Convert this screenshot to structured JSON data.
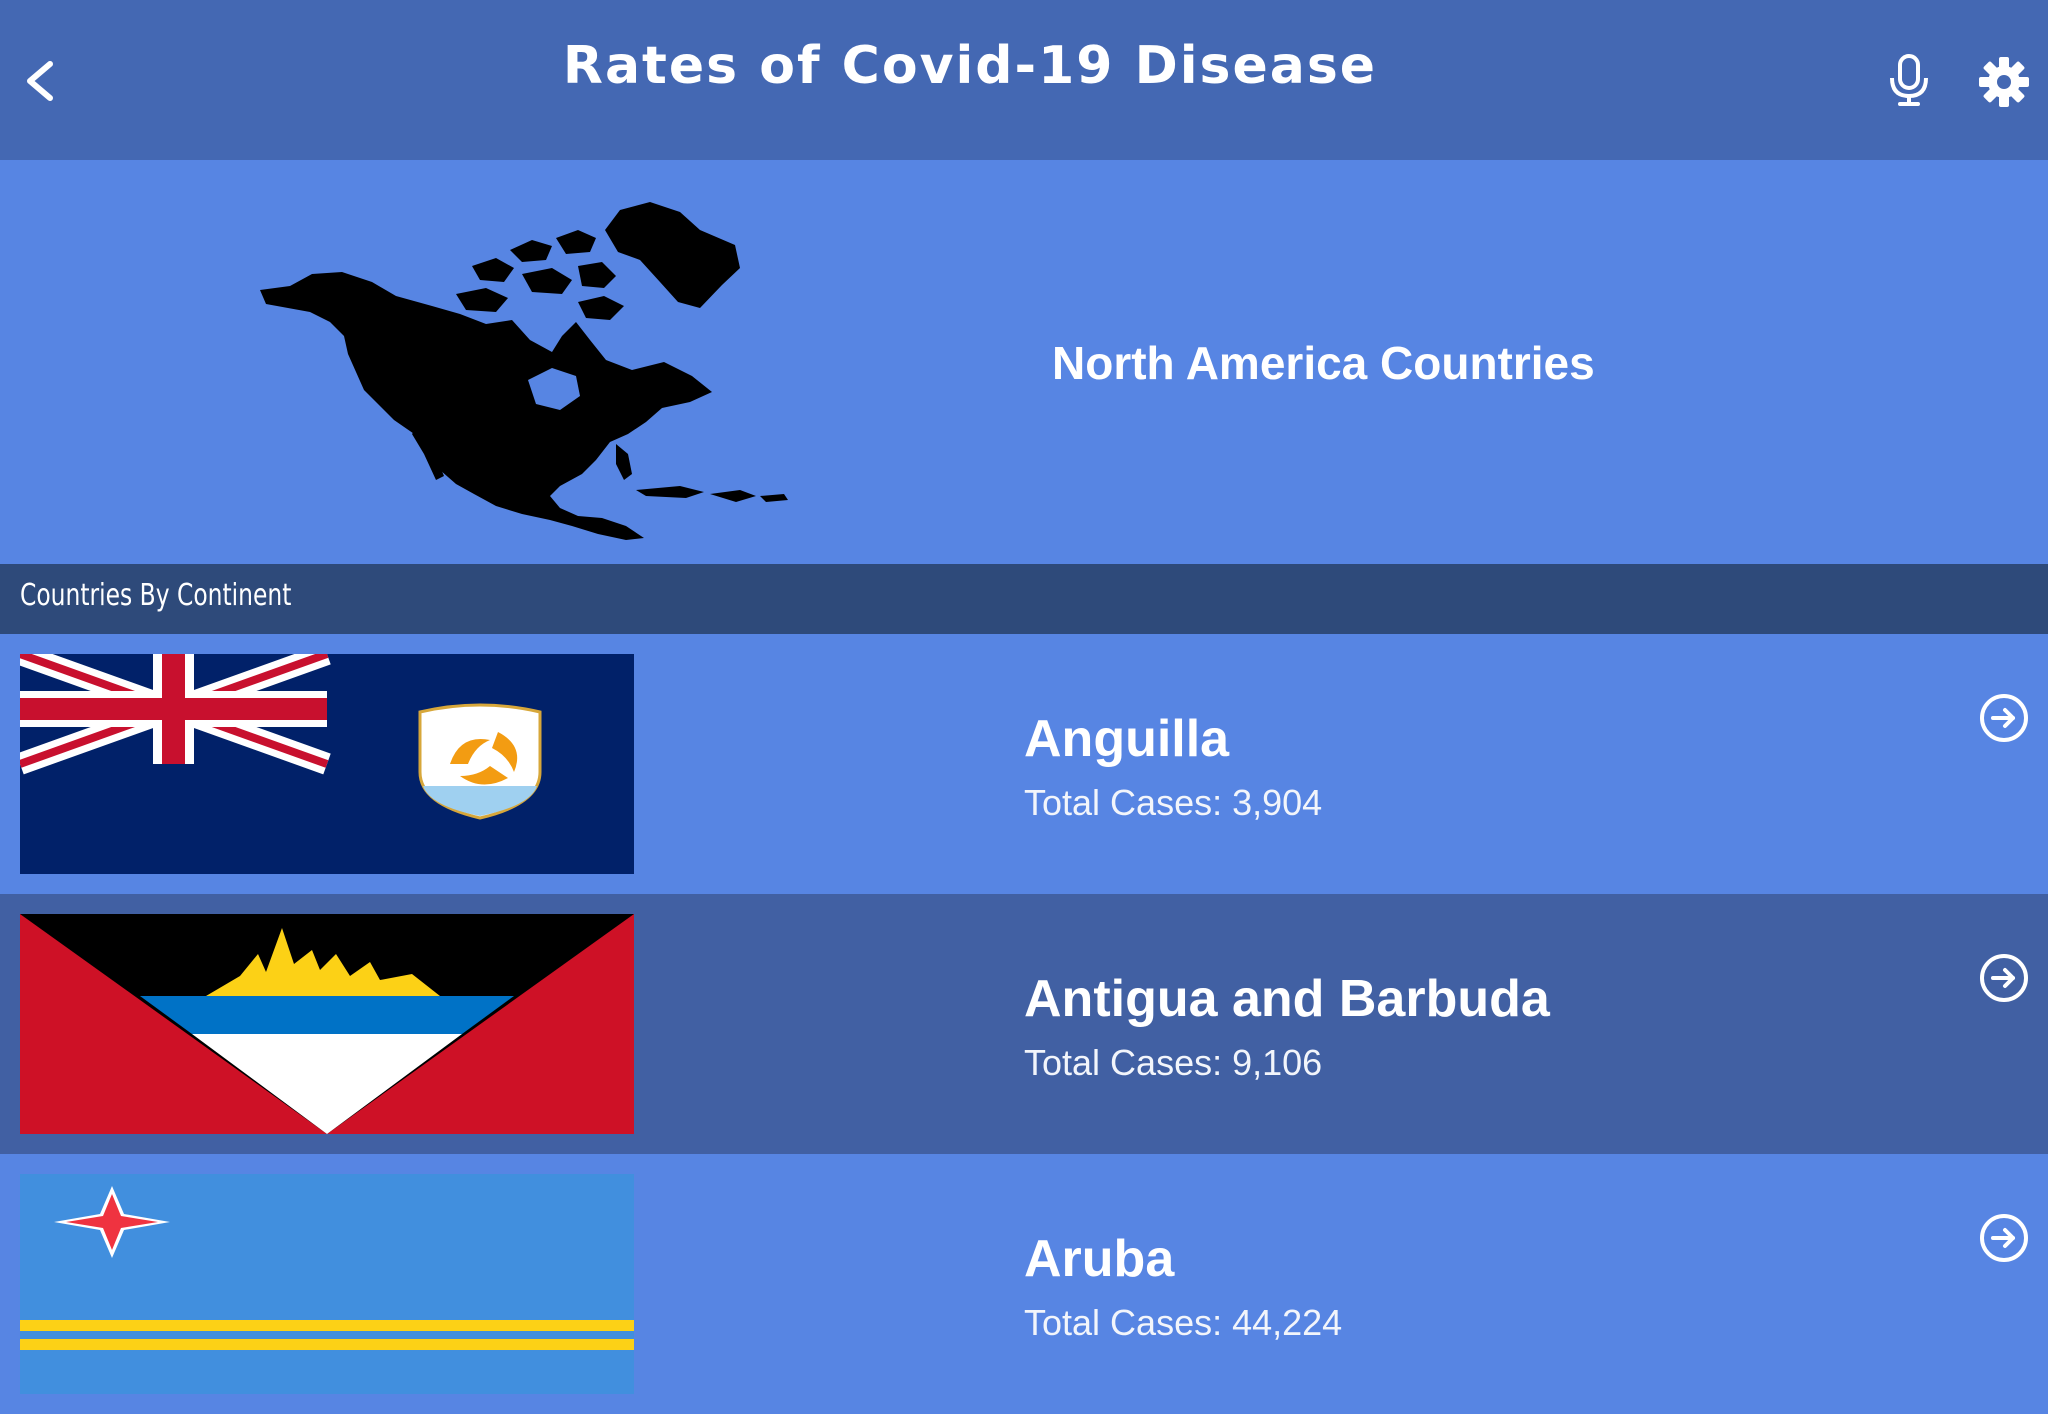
{
  "header": {
    "title": "Rates of Covid-19 Disease",
    "icons": [
      "back-arrow-icon",
      "microphone-icon",
      "gear-icon"
    ]
  },
  "hero": {
    "title": "North America Countries",
    "image": "north-america-map"
  },
  "section": {
    "label": "Countries By Continent"
  },
  "countries": [
    {
      "name": "Anguilla",
      "cases": "Total Cases: 3,904",
      "flag": "anguilla-flag"
    },
    {
      "name": "Antigua and Barbuda",
      "cases": "Total Cases: 9,106",
      "flag": "antigua-and-barbuda-flag"
    },
    {
      "name": "Aruba",
      "cases": "Total Cases: 44,224",
      "flag": "aruba-flag"
    }
  ],
  "colors": {
    "header_bg": "#4468b3",
    "row_bg": "#5785e3",
    "row_alt_bg": "#4160a3",
    "section_bg": "#2e4a7a"
  }
}
